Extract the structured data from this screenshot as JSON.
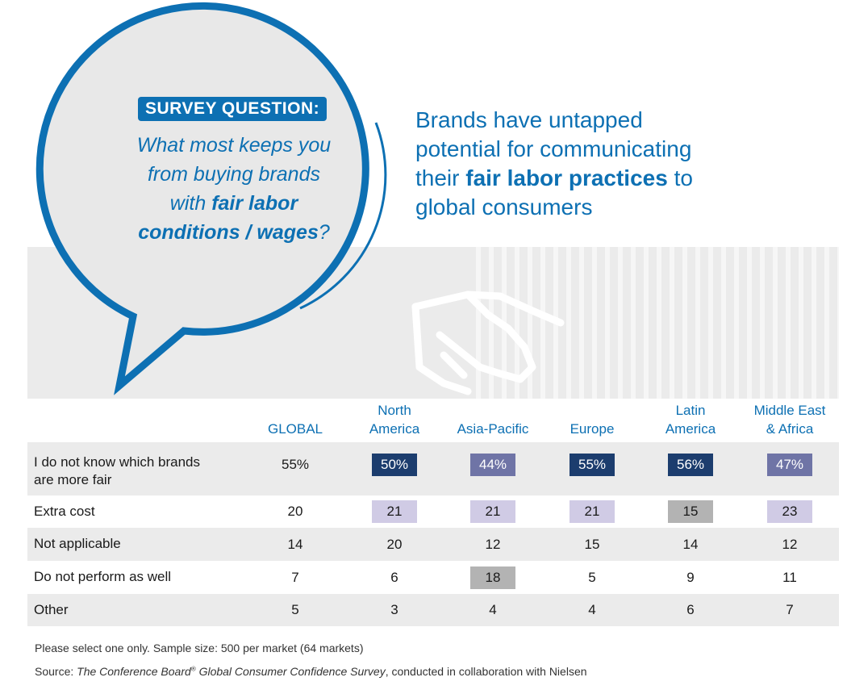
{
  "bubble": {
    "label": "SURVEY QUESTION:",
    "question": {
      "line1": "What most keeps you",
      "line2": "from buying brands",
      "line3_pre": "with ",
      "line3_bold": "fair labor",
      "line4_bold": "conditions / wages",
      "line4_post": "?"
    }
  },
  "headline": {
    "line1": "Brands have untapped",
    "line2": "potential for communicating",
    "line3_pre": "their ",
    "line3_bold": "fair labor practices",
    "line3_post": " to",
    "line4": "global consumers"
  },
  "colors": {
    "blue": "#0d70b3",
    "navy": "#1c3d6e",
    "slate": "#6f74a6",
    "lavender": "#d0cbe5",
    "gray": "#b3b3b3"
  },
  "chart_data": {
    "type": "table",
    "columns": [
      {
        "line1": "",
        "line2": "GLOBAL"
      },
      {
        "line1": "North",
        "line2": "America"
      },
      {
        "line1": "",
        "line2": "Asia-Pacific"
      },
      {
        "line1": "",
        "line2": "Europe"
      },
      {
        "line1": "Latin",
        "line2": "America"
      },
      {
        "line1": "Middle East",
        "line2": "& Africa"
      }
    ],
    "rows": [
      {
        "label1": "I do not know which brands",
        "label2": "are more fair",
        "values": [
          "55%",
          "50%",
          "44%",
          "55%",
          "56%",
          "47%"
        ],
        "highlight": [
          "none",
          "navy",
          "slate",
          "navy",
          "navy",
          "slate"
        ]
      },
      {
        "label1": "Extra cost",
        "label2": "",
        "values": [
          "20",
          "21",
          "21",
          "21",
          "15",
          "23"
        ],
        "highlight": [
          "none",
          "lavender",
          "lavender",
          "lavender",
          "gray",
          "lavender"
        ]
      },
      {
        "label1": "Not applicable",
        "label2": "",
        "values": [
          "14",
          "20",
          "12",
          "15",
          "14",
          "12"
        ],
        "highlight": [
          "none",
          "none",
          "none",
          "none",
          "none",
          "none"
        ]
      },
      {
        "label1": "Do not perform as well",
        "label2": "",
        "values": [
          "7",
          "6",
          "18",
          "5",
          "9",
          "11"
        ],
        "highlight": [
          "none",
          "none",
          "gray",
          "none",
          "none",
          "none"
        ]
      },
      {
        "label1": "Other",
        "label2": "",
        "values": [
          "5",
          "3",
          "4",
          "4",
          "6",
          "7"
        ],
        "highlight": [
          "none",
          "none",
          "none",
          "none",
          "none",
          "none"
        ]
      }
    ]
  },
  "footnotes": {
    "note": "Please select one only. Sample size: 500 per market (64 markets)",
    "source_prefix": "Source: ",
    "source_title": "The Conference Board",
    "source_reg": "®",
    "source_title2": " Global Consumer Confidence Survey",
    "source_suffix": ", conducted in collaboration with Nielsen"
  }
}
